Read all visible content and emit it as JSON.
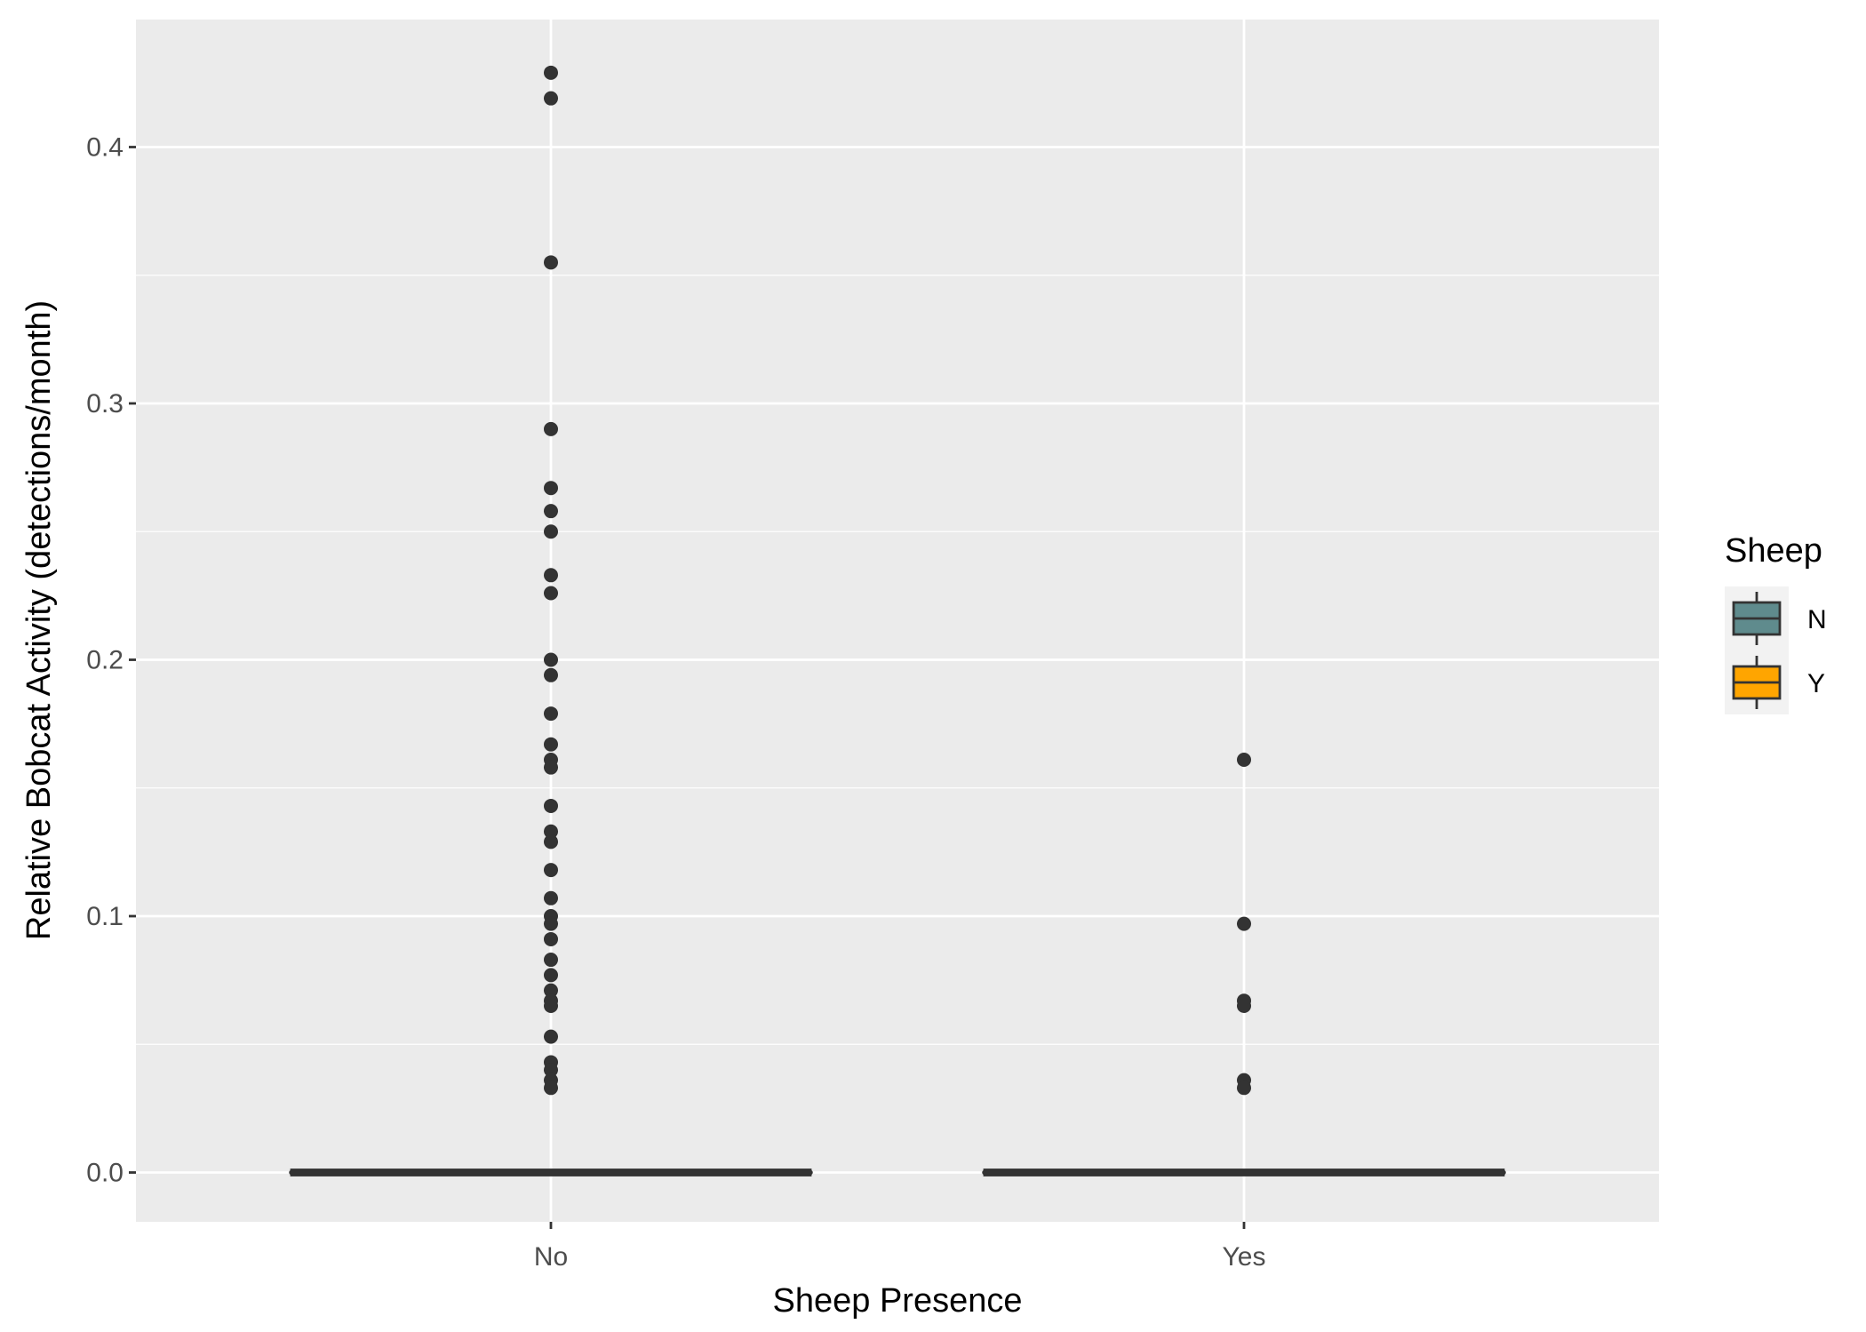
{
  "chart_data": {
    "type": "box",
    "xlabel": "Sheep Presence",
    "ylabel": "Relative Bobcat Activity (detections/month)",
    "categories": [
      "No",
      "Yes"
    ],
    "ylim": [
      -0.021,
      0.45
    ],
    "yticks": [
      0.0,
      0.1,
      0.2,
      0.3,
      0.4
    ],
    "ytick_labels": [
      "0.0",
      "0.1",
      "0.2",
      "0.3",
      "0.4"
    ],
    "grid": true,
    "legend": {
      "title": "Sheep",
      "position": "right",
      "entries": [
        {
          "label": "N",
          "color": "#5F8B8D"
        },
        {
          "label": "Y",
          "color": "#FFA500"
        }
      ]
    },
    "boxes": [
      {
        "category": "No",
        "group": "N",
        "fill": "#5F8B8D",
        "min": 0,
        "q1": 0,
        "median": 0,
        "q3": 0,
        "max": 0,
        "outliers": [
          0.429,
          0.419,
          0.355,
          0.29,
          0.267,
          0.258,
          0.25,
          0.233,
          0.226,
          0.2,
          0.194,
          0.179,
          0.167,
          0.161,
          0.158,
          0.143,
          0.133,
          0.129,
          0.118,
          0.107,
          0.1,
          0.097,
          0.091,
          0.083,
          0.077,
          0.071,
          0.067,
          0.065,
          0.053,
          0.043,
          0.04,
          0.036,
          0.033
        ]
      },
      {
        "category": "Yes",
        "group": "Y",
        "fill": "#FFA500",
        "min": 0,
        "q1": 0,
        "median": 0,
        "q3": 0,
        "max": 0,
        "outliers": [
          0.161,
          0.097,
          0.067,
          0.065,
          0.036,
          0.033
        ]
      }
    ]
  }
}
